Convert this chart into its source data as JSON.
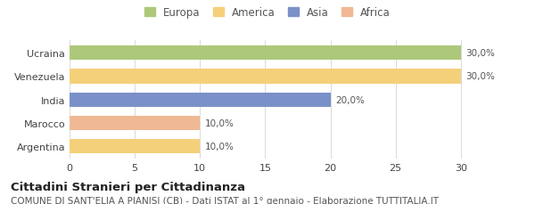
{
  "categories": [
    "Ucraina",
    "Venezuela",
    "India",
    "Marocco",
    "Argentina"
  ],
  "values": [
    30,
    30,
    20,
    10,
    10
  ],
  "bar_colors": [
    "#adc87a",
    "#f5d07a",
    "#7a90c8",
    "#f0b894",
    "#f5d07a"
  ],
  "labels": [
    "30,0%",
    "30,0%",
    "20,0%",
    "10,0%",
    "10,0%"
  ],
  "legend_labels": [
    "Europa",
    "America",
    "Asia",
    "Africa"
  ],
  "legend_colors": [
    "#adc87a",
    "#f5d07a",
    "#7a90c8",
    "#f0b894"
  ],
  "xlim": [
    0,
    32
  ],
  "xticks": [
    0,
    5,
    10,
    15,
    20,
    25,
    30
  ],
  "title_bold": "Cittadini Stranieri per Cittadinanza",
  "subtitle": "COMUNE DI SANT'ELIA A PIANISI (CB) - Dati ISTAT al 1° gennaio - Elaborazione TUTTITALIA.IT",
  "background_color": "#ffffff",
  "bar_height": 0.62,
  "title_fontsize": 9.5,
  "subtitle_fontsize": 7.5,
  "label_fontsize": 7.5,
  "tick_fontsize": 8,
  "legend_fontsize": 8.5
}
